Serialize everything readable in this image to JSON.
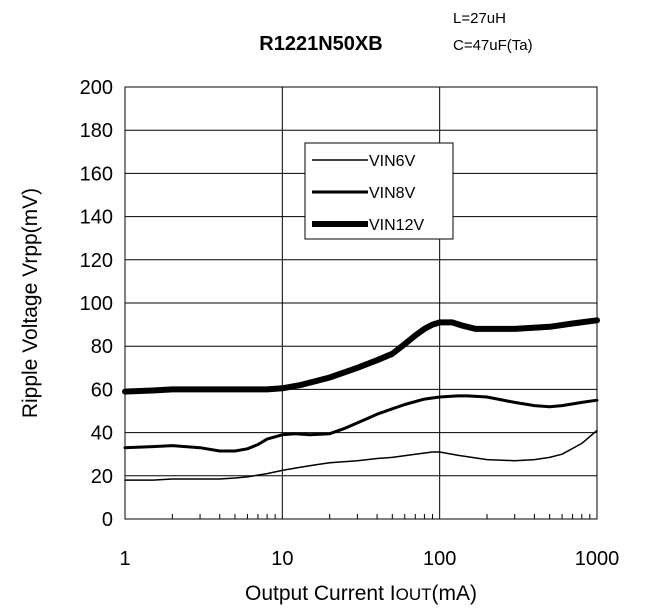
{
  "chart_data": {
    "type": "line",
    "title": "R1221N50XB",
    "notes": [
      "L=27uH",
      "C=47uF(Ta)"
    ],
    "xlabel": {
      "main": "Output Current I",
      "sub": "OUT",
      "unit": "(mA)"
    },
    "ylabel": "Ripple Voltage Vrpp(mV)",
    "xscale": "log",
    "xlim": [
      1,
      1000
    ],
    "ylim": [
      0,
      200
    ],
    "xticks": [
      1,
      10,
      100,
      1000
    ],
    "xtick_labels": [
      "1",
      "10",
      "100",
      "1000"
    ],
    "yticks": [
      0,
      20,
      40,
      60,
      80,
      100,
      120,
      140,
      160,
      180,
      200
    ],
    "ytick_labels": [
      "0",
      "20",
      "40",
      "60",
      "80",
      "100",
      "120",
      "140",
      "160",
      "180",
      "200"
    ],
    "grid": true,
    "legend_position": "upper-center",
    "series": [
      {
        "name": "VIN6V",
        "color": "#000000",
        "x": [
          1,
          1.5,
          2,
          3,
          4,
          5,
          6,
          8,
          10,
          13,
          16,
          20,
          30,
          40,
          50,
          70,
          90,
          100,
          130,
          200,
          300,
          400,
          500,
          600,
          800,
          1000
        ],
        "y": [
          18,
          18,
          18.5,
          18.5,
          18.5,
          19,
          19.5,
          21,
          22.5,
          24,
          25,
          26,
          27,
          28,
          28.5,
          30,
          31,
          31,
          29.5,
          27.5,
          27,
          27.5,
          28.5,
          30,
          35,
          41
        ]
      },
      {
        "name": "VIN8V",
        "color": "#000000",
        "x": [
          1,
          1.5,
          2,
          3,
          4,
          5,
          6,
          7,
          8,
          10,
          12,
          15,
          20,
          25,
          30,
          40,
          50,
          60,
          80,
          100,
          130,
          150,
          200,
          300,
          400,
          500,
          600,
          800,
          1000
        ],
        "y": [
          33,
          33.5,
          34,
          33,
          31.5,
          31.5,
          32.5,
          34.5,
          37,
          39,
          39.5,
          39,
          39.5,
          42,
          44.5,
          48.5,
          51,
          53,
          55.5,
          56.5,
          57,
          57,
          56.5,
          54,
          52.5,
          52,
          52.5,
          54,
          55
        ]
      },
      {
        "name": "VIN12V",
        "color": "#000000",
        "x": [
          1,
          1.5,
          2,
          3,
          5,
          8,
          10,
          13,
          20,
          30,
          40,
          50,
          60,
          70,
          80,
          90,
          100,
          120,
          140,
          170,
          200,
          300,
          500,
          700,
          1000
        ],
        "y": [
          59,
          59.5,
          60,
          60,
          60,
          60,
          60.5,
          62,
          65.5,
          70,
          73.5,
          76.5,
          81,
          85,
          88,
          90,
          91,
          91,
          89.5,
          88,
          88,
          88,
          89,
          90.5,
          92
        ]
      }
    ]
  }
}
